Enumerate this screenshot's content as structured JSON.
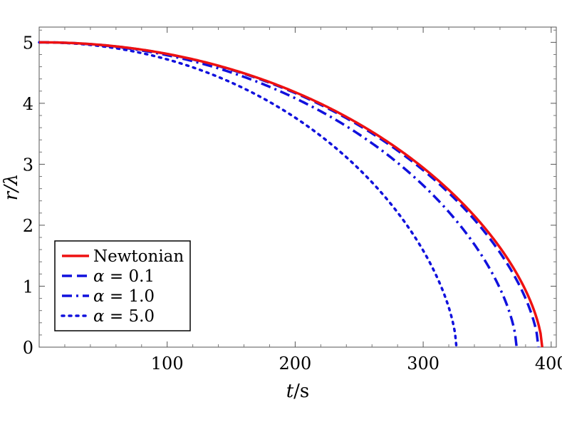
{
  "chart_data": {
    "type": "line",
    "title": "",
    "xlabel_var": "t",
    "xlabel_unit": "/s",
    "ylabel_var": "r",
    "ylabel_unit": "/λ",
    "xlim": [
      0,
      404
    ],
    "ylim": [
      0,
      5.25
    ],
    "x_ticks": [
      100,
      200,
      300,
      400
    ],
    "y_ticks": [
      0,
      1,
      2,
      3,
      4,
      5
    ],
    "grid": false,
    "legend_position": "bottom-left",
    "series": [
      {
        "name": "Newtonian",
        "label": "Newtonian",
        "color": "#ee1111",
        "style": "solid",
        "t_end": 393,
        "x": [
          0,
          50,
          100,
          150,
          200,
          250,
          300,
          330,
          350,
          370,
          385,
          393
        ],
        "y": [
          5.0,
          4.9,
          4.77,
          4.5,
          4.17,
          3.62,
          2.87,
          2.2,
          1.67,
          1.05,
          0.5,
          0.0
        ]
      },
      {
        "name": "alpha-0.1",
        "label_sym": "α",
        "label_val": " = 0.1",
        "color": "#1111dd",
        "style": "dashed",
        "t_end": 390,
        "x": [
          0,
          50,
          100,
          150,
          200,
          250,
          300,
          330,
          350,
          370,
          385,
          390
        ],
        "y": [
          5.0,
          4.9,
          4.77,
          4.5,
          4.15,
          3.6,
          2.85,
          2.2,
          1.6,
          0.97,
          0.42,
          0.0
        ]
      },
      {
        "name": "alpha-1.0",
        "label_sym": "α",
        "label_val": " = 1.0",
        "color": "#1111dd",
        "style": "dashdot",
        "t_end": 373,
        "x": [
          0,
          50,
          100,
          150,
          200,
          250,
          300,
          330,
          350,
          365,
          373
        ],
        "y": [
          5.0,
          4.88,
          4.77,
          4.5,
          4.1,
          3.55,
          2.75,
          2.0,
          1.35,
          0.7,
          0.0
        ]
      },
      {
        "name": "alpha-5.0",
        "label_sym": "α",
        "label_val": " = 5.0",
        "color": "#1111dd",
        "style": "dotted",
        "t_end": 326,
        "x": [
          0,
          50,
          100,
          150,
          200,
          250,
          290,
          310,
          320,
          326
        ],
        "y": [
          5.0,
          4.88,
          4.72,
          4.35,
          3.8,
          3.0,
          2.0,
          1.3,
          0.7,
          0.0
        ]
      }
    ]
  }
}
